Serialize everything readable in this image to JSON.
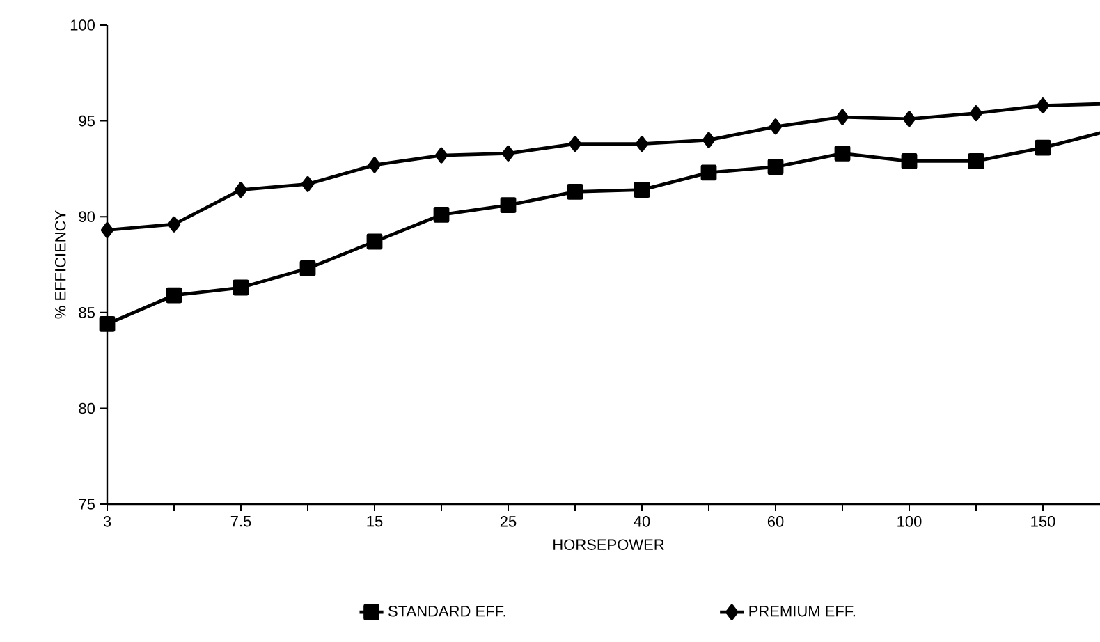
{
  "chart_data": {
    "type": "line",
    "xlabel": "HORSEPOWER",
    "ylabel": "% EFFICIENCY",
    "categories": [
      "3",
      null,
      "7.5",
      null,
      "15",
      null,
      "25",
      null,
      "40",
      null,
      "60",
      null,
      "100",
      null,
      "150",
      null
    ],
    "series": [
      {
        "name": "STANDARD EFF.",
        "color": "#000000",
        "marker": "square",
        "values": [
          84.4,
          85.9,
          86.3,
          87.3,
          88.7,
          90.1,
          90.6,
          91.3,
          91.4,
          92.3,
          92.6,
          93.3,
          92.9,
          92.9,
          93.6,
          94.5
        ]
      },
      {
        "name": "PREMIUM EFF.",
        "color": "#000000",
        "marker": "diamond",
        "values": [
          89.3,
          89.6,
          91.4,
          91.7,
          92.7,
          93.2,
          93.3,
          93.8,
          93.8,
          94.0,
          94.7,
          95.2,
          95.1,
          95.4,
          95.8,
          95.9
        ]
      }
    ],
    "ylim": [
      75,
      100
    ],
    "yticks": [
      75,
      80,
      85,
      90,
      95,
      100
    ],
    "legend": "bottom",
    "grid": false,
    "line_style": "solid"
  }
}
